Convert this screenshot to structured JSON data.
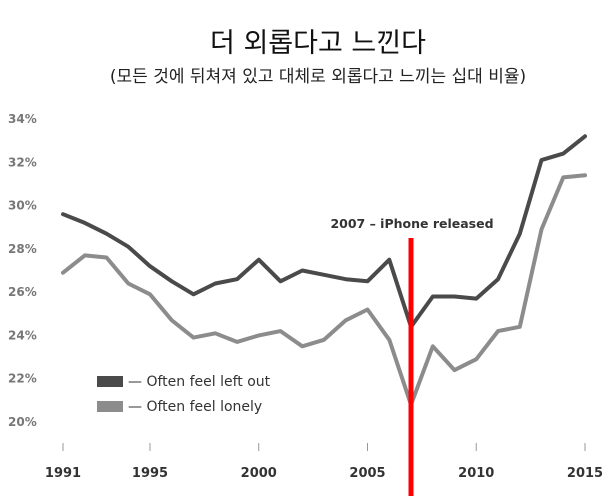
{
  "chart_data": {
    "type": "line",
    "title": "더 외롭다고 느낀다",
    "subtitle": "(모든 것에 뒤쳐져 있고 대체로 외롭다고 느끼는 십대 비율)",
    "x": [
      1991,
      1992,
      1993,
      1994,
      1995,
      1996,
      1997,
      1998,
      1999,
      2000,
      2001,
      2002,
      2003,
      2004,
      2005,
      2006,
      2007,
      2008,
      2009,
      2010,
      2011,
      2012,
      2013,
      2014,
      2015
    ],
    "series": [
      {
        "name": "— Often feel left out",
        "color": "#4a4a4a",
        "values": [
          29.6,
          29.2,
          28.7,
          28.1,
          27.2,
          26.5,
          25.9,
          26.4,
          26.6,
          27.5,
          26.5,
          27.0,
          26.8,
          26.6,
          26.5,
          27.5,
          24.4,
          25.8,
          25.8,
          25.7,
          26.6,
          28.7,
          32.1,
          32.4,
          33.2
        ]
      },
      {
        "name": "— Often feel lonely",
        "color": "#8c8c8c",
        "values": [
          26.9,
          27.7,
          27.6,
          26.4,
          25.9,
          24.7,
          23.9,
          24.1,
          23.7,
          24.0,
          24.2,
          23.5,
          23.8,
          24.7,
          25.2,
          23.8,
          20.8,
          23.5,
          22.4,
          22.9,
          24.2,
          24.4,
          28.9,
          31.3,
          31.4
        ]
      }
    ],
    "yticks": [
      "20%",
      "22%",
      "24%",
      "26%",
      "28%",
      "30%",
      "32%",
      "34%"
    ],
    "ytick_values": [
      20,
      22,
      24,
      26,
      28,
      30,
      32,
      34
    ],
    "xticks": [
      "1991",
      "1995",
      "2000",
      "2005",
      "2010",
      "2015"
    ],
    "xtick_values": [
      1991,
      1995,
      2000,
      2005,
      2010,
      2015
    ],
    "xlim": [
      1991,
      2015
    ],
    "ylim": [
      20,
      34
    ],
    "annotation": {
      "label": "2007 – iPhone released",
      "x": 2007,
      "color": "#ff0000"
    },
    "legend_position": "bottom-left",
    "grid": false
  }
}
